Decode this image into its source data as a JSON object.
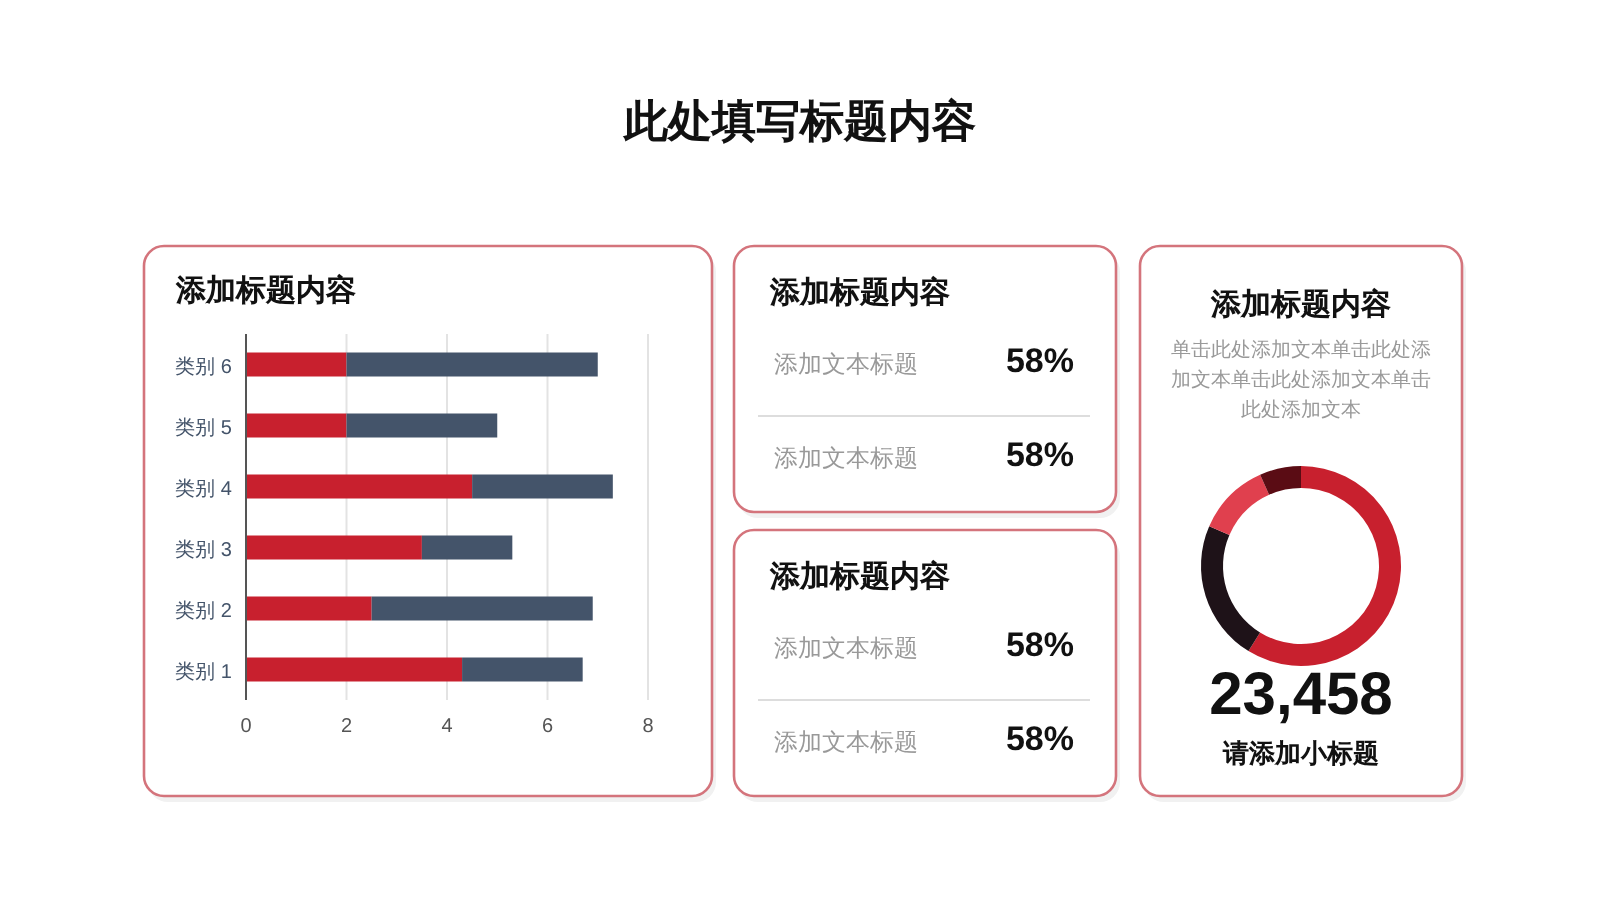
{
  "chart_data": [
    {
      "type": "other",
      "title": "此处填写标题内容"
    },
    {
      "type": "bar",
      "title": "添加标题内容",
      "orientation": "horizontal",
      "stacked": true,
      "categories": [
        "类别 6",
        "类别 5",
        "类别 4",
        "类别 3",
        "类别 2",
        "类别 1"
      ],
      "series": [
        {
          "color": "#c8202e",
          "values": [
            2,
            2,
            4.5,
            3.5,
            2.5,
            4.3
          ]
        },
        {
          "color": "#44546a",
          "values": [
            5,
            3,
            2.8,
            1.8,
            4.4,
            2.4
          ]
        }
      ],
      "xlim": [
        0,
        8
      ],
      "xticks": [
        0,
        2,
        4,
        6,
        8
      ],
      "grid": "x"
    },
    {
      "type": "other",
      "title": "添加标题内容",
      "annotations": [
        "添加文本标题",
        "58%",
        "添加文本标题",
        "58%"
      ]
    },
    {
      "type": "other",
      "title": "添加标题内容",
      "annotations": [
        "添加文本标题",
        "58%",
        "添加文本标题",
        "58%"
      ]
    },
    {
      "type": "donut",
      "title": "添加标题内容",
      "categories": [
        null,
        null,
        null,
        null
      ],
      "values": [
        58.8,
        22.7,
        11.8,
        6.7
      ],
      "colors": [
        "#c8202e",
        "#1e1218",
        "#e0404e",
        "#5a0c14"
      ],
      "annotations": [
        "单击此处添加文本单击此处添加文本单击此处添加文本单击此处添加文本",
        "23,458",
        "请添加小标题"
      ]
    }
  ]
}
